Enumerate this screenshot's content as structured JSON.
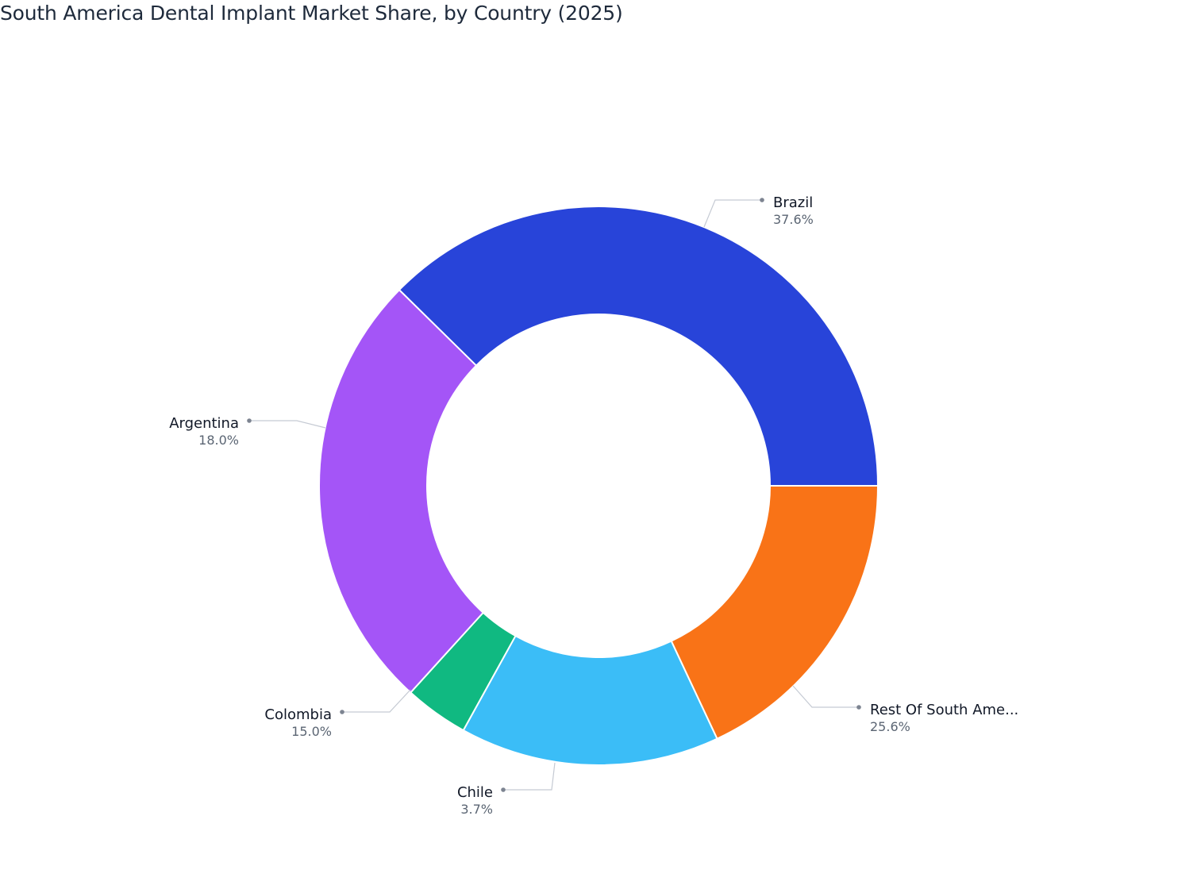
{
  "chart_data": {
    "type": "pie",
    "title": "South America Dental Implant Market Share, by Country (2025)",
    "donut": true,
    "unit": "%",
    "slices": [
      {
        "label": "Brazil",
        "display_label": "Brazil",
        "value": 37.6,
        "value_label": "37.6%",
        "color": "#2844d9"
      },
      {
        "label": "Rest Of South America",
        "display_label": "Rest Of South Ame...",
        "value": 25.6,
        "value_label": "25.6%",
        "color": "#a455f7"
      },
      {
        "label": "Chile",
        "display_label": "Chile",
        "value": 3.7,
        "value_label": "3.7%",
        "color": "#10b981"
      },
      {
        "label": "Colombia",
        "display_label": "Colombia",
        "value": 15.0,
        "value_label": "15.0%",
        "color": "#3bbdf7"
      },
      {
        "label": "Argentina",
        "display_label": "Argentina",
        "value": 18.0,
        "value_label": "18.0%",
        "color": "#f97317"
      }
    ]
  }
}
